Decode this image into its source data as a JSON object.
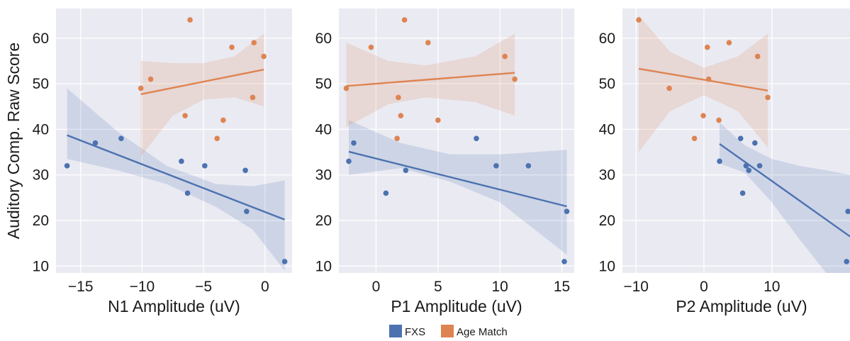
{
  "legend": {
    "entries": [
      {
        "label": "FXS",
        "color": "#4c72b0"
      },
      {
        "label": "Age Match",
        "color": "#dd8452"
      }
    ],
    "placement": "bottom-center"
  },
  "chart_data": [
    {
      "type": "scatter",
      "xlabel": "N1 Amplitude (uV)",
      "ylabel": "Auditory Comp. Raw Score",
      "xlim": [
        -17,
        2.2
      ],
      "ylim": [
        8.5,
        66.5
      ],
      "xticks": [
        -15,
        -10,
        -5,
        0
      ],
      "xtick_labels": [
        "−15",
        "−10",
        "−5",
        "0"
      ],
      "yticks": [
        10,
        20,
        30,
        40,
        50,
        60
      ],
      "ytick_labels": [
        "10",
        "20",
        "30",
        "40",
        "50",
        "60"
      ],
      "grid": true,
      "series": [
        {
          "name": "FXS",
          "color": "#4c72b0",
          "points": [
            [
              -16.1,
              32
            ],
            [
              -13.8,
              37
            ],
            [
              -11.7,
              38
            ],
            [
              -6.8,
              33
            ],
            [
              -6.3,
              26
            ],
            [
              -4.9,
              32
            ],
            [
              -1.6,
              31
            ],
            [
              -1.5,
              22
            ],
            [
              1.6,
              11
            ]
          ],
          "fit": [
            [
              -16.1,
              38.7
            ],
            [
              1.6,
              20.2
            ]
          ],
          "ci_upper": [
            [
              -16.1,
              49
            ],
            [
              -12,
              39.5
            ],
            [
              -8,
              32
            ],
            [
              -4,
              28
            ],
            [
              -1,
              27.5
            ],
            [
              1.6,
              28.8
            ]
          ],
          "ci_lower": [
            [
              -16.1,
              33.5
            ],
            [
              -12,
              31
            ],
            [
              -8,
              28
            ],
            [
              -4,
              23
            ],
            [
              -1,
              18
            ],
            [
              1.6,
              9
            ]
          ]
        },
        {
          "name": "Age Match",
          "color": "#dd8452",
          "points": [
            [
              -10.1,
              49
            ],
            [
              -9.3,
              51
            ],
            [
              -6.5,
              43
            ],
            [
              -6.1,
              64
            ],
            [
              -3.9,
              38
            ],
            [
              -3.4,
              42
            ],
            [
              -2.7,
              58
            ],
            [
              -1.0,
              47
            ],
            [
              -0.9,
              59
            ],
            [
              -0.1,
              56
            ]
          ],
          "fit": [
            [
              -10.1,
              47.7
            ],
            [
              -0.1,
              53.1
            ]
          ],
          "ci_upper": [
            [
              -10.1,
              55
            ],
            [
              -7.5,
              54.5
            ],
            [
              -5,
              54.5
            ],
            [
              -2.5,
              56
            ],
            [
              -0.1,
              61
            ]
          ],
          "ci_lower": [
            [
              -10.1,
              34
            ],
            [
              -7.5,
              43
            ],
            [
              -5,
              46.5
            ],
            [
              -2.5,
              47
            ],
            [
              -0.1,
              45
            ]
          ]
        }
      ]
    },
    {
      "type": "scatter",
      "xlabel": "P1 Amplitude (uV)",
      "ylabel": "",
      "xlim": [
        -3.0,
        16.0
      ],
      "ylim": [
        8.5,
        66.5
      ],
      "xticks": [
        0,
        5,
        10,
        15
      ],
      "xtick_labels": [
        "0",
        "5",
        "10",
        "15"
      ],
      "yticks": [
        10,
        20,
        30,
        40,
        50,
        60
      ],
      "ytick_labels": [
        "10",
        "20",
        "30",
        "40",
        "50",
        "60"
      ],
      "grid": true,
      "series": [
        {
          "name": "FXS",
          "color": "#4c72b0",
          "points": [
            [
              -2.2,
              33
            ],
            [
              -1.8,
              37
            ],
            [
              0.8,
              26
            ],
            [
              2.4,
              31
            ],
            [
              8.1,
              38
            ],
            [
              9.7,
              32
            ],
            [
              12.3,
              32
            ],
            [
              15.2,
              11
            ],
            [
              15.4,
              22
            ]
          ],
          "fit": [
            [
              -2.2,
              35.1
            ],
            [
              15.4,
              23.1
            ]
          ],
          "ci_upper": [
            [
              -2.2,
              42
            ],
            [
              2,
              37
            ],
            [
              6,
              34.5
            ],
            [
              10,
              34.5
            ],
            [
              15.4,
              35.5
            ]
          ],
          "ci_lower": [
            [
              -2.2,
              30
            ],
            [
              2,
              31.5
            ],
            [
              6,
              28.5
            ],
            [
              10,
              24
            ],
            [
              15.4,
              12.5
            ]
          ]
        },
        {
          "name": "Age Match",
          "color": "#dd8452",
          "points": [
            [
              -2.4,
              49
            ],
            [
              -0.4,
              58
            ],
            [
              1.7,
              38
            ],
            [
              1.8,
              47
            ],
            [
              2.0,
              43
            ],
            [
              2.3,
              64
            ],
            [
              4.2,
              59
            ],
            [
              5.0,
              42
            ],
            [
              10.4,
              56
            ],
            [
              11.2,
              51
            ]
          ],
          "fit": [
            [
              -2.4,
              49.5
            ],
            [
              11.2,
              52.4
            ]
          ],
          "ci_upper": [
            [
              -2.4,
              59
            ],
            [
              1,
              55
            ],
            [
              4,
              54
            ],
            [
              8,
              56
            ],
            [
              11.2,
              61
            ]
          ],
          "ci_lower": [
            [
              -2.4,
              40.5
            ],
            [
              1,
              45.5
            ],
            [
              4,
              47
            ],
            [
              8,
              46
            ],
            [
              11.2,
              43
            ]
          ]
        }
      ]
    },
    {
      "type": "scatter",
      "xlabel": "P2 Amplitude (uV)",
      "ylabel": "",
      "xlim": [
        -12,
        21.5
      ],
      "ylim": [
        8.5,
        66.5
      ],
      "xticks": [
        -10,
        0,
        10
      ],
      "xtick_labels": [
        "−10",
        "0",
        "10"
      ],
      "yticks": [
        10,
        20,
        30,
        40,
        50,
        60
      ],
      "ytick_labels": [
        "10",
        "20",
        "30",
        "40",
        "50",
        "60"
      ],
      "grid": true,
      "series": [
        {
          "name": "FXS",
          "color": "#4c72b0",
          "points": [
            [
              2.3,
              33
            ],
            [
              5.4,
              38
            ],
            [
              5.7,
              26
            ],
            [
              6.2,
              32
            ],
            [
              6.6,
              31
            ],
            [
              7.5,
              37
            ],
            [
              8.2,
              32
            ],
            [
              21.0,
              11
            ],
            [
              21.2,
              22
            ]
          ],
          "fit": [
            [
              2.3,
              36.8
            ],
            [
              21.5,
              16.5
            ]
          ],
          "ci_upper": [
            [
              2.3,
              41.5
            ],
            [
              6,
              36.5
            ],
            [
              10,
              33.5
            ],
            [
              14,
              32
            ],
            [
              18,
              31
            ],
            [
              21.5,
              30
            ]
          ],
          "ci_lower": [
            [
              2.3,
              32.5
            ],
            [
              6,
              30.5
            ],
            [
              10,
              24
            ],
            [
              14,
              16
            ],
            [
              18,
              8.5
            ],
            [
              21.5,
              8.5
            ]
          ]
        },
        {
          "name": "Age Match",
          "color": "#dd8452",
          "points": [
            [
              -9.6,
              64
            ],
            [
              -5.1,
              49
            ],
            [
              -1.4,
              38
            ],
            [
              -0.1,
              43
            ],
            [
              0.5,
              58
            ],
            [
              0.7,
              51
            ],
            [
              2.2,
              42
            ],
            [
              3.7,
              59
            ],
            [
              7.9,
              56
            ],
            [
              9.4,
              47
            ]
          ],
          "fit": [
            [
              -9.6,
              53.3
            ],
            [
              9.4,
              48.5
            ]
          ],
          "ci_upper": [
            [
              -9.6,
              65
            ],
            [
              -5,
              57
            ],
            [
              0,
              53.5
            ],
            [
              5,
              56
            ],
            [
              9.4,
              61
            ]
          ],
          "ci_lower": [
            [
              -9.6,
              35
            ],
            [
              -5,
              44
            ],
            [
              0,
              47.5
            ],
            [
              5,
              44
            ],
            [
              9.4,
              36
            ]
          ]
        }
      ]
    }
  ]
}
